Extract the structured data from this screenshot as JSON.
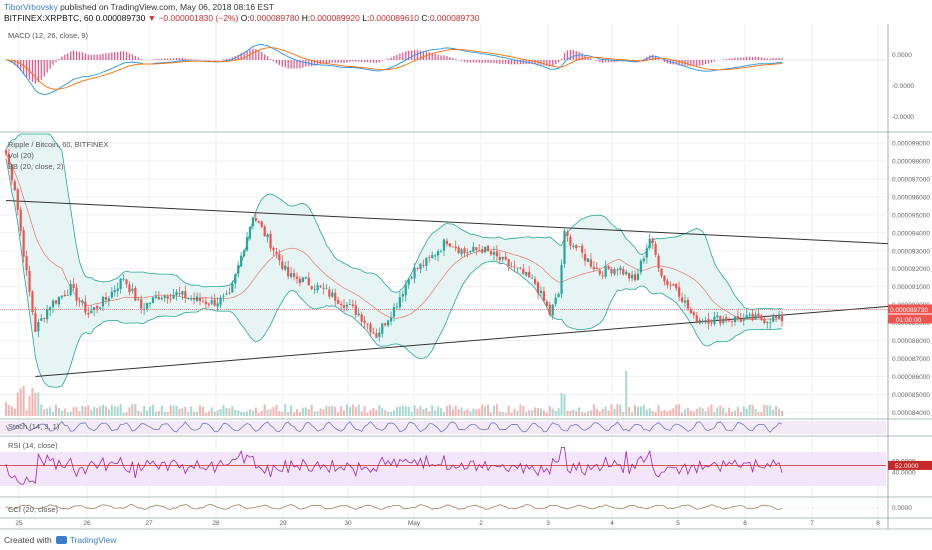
{
  "header": {
    "author": "TiborVrbovsky",
    "published_text": "published on TradingView.com, May 06, 2018 08:16 EST",
    "symbol": "BITFINEX:XRPBTC, 60",
    "last": "0.000089730",
    "change": "▼ −0.000001830 (−2%)",
    "ohlc": {
      "o_label": "O:",
      "o": "0.000089780",
      "h_label": "H:",
      "h": "0.000089920",
      "l_label": "L:",
      "l": "0.000089610",
      "c_label": "C:",
      "c": "0.000089730"
    }
  },
  "colors": {
    "up": "#26a69a",
    "down": "#ef5350",
    "macd": "#2196f3",
    "signal": "#ff6d00",
    "hist": "#e91e63",
    "rsi": "#9c27b0",
    "bb": "#26a69a",
    "basis": "#e57373",
    "trend": "#333333",
    "cci": "#a0835a"
  },
  "panes": {
    "macd_label": "MACD (12, 26, close, 9)",
    "main_label": "Ripple / Bitcoin, 60, BITFINEX",
    "vol_label": "Vol (20)",
    "bb_label": "BB (20, close, 2)",
    "stoch_label": "Stoch (14, 3, 1)",
    "rsi_label": "RSI (14, close)",
    "cci_label": "CCI (20, close)"
  },
  "chart_data": {
    "type": "candlestick",
    "x_ticks": [
      "25",
      "26",
      "27",
      "28",
      "29",
      "30",
      "May",
      "2",
      "3",
      "4",
      "5",
      "6",
      "7",
      "8"
    ],
    "price_axis_ticks": [
      "0.000099000",
      "0.000098000",
      "0.000097000",
      "0.000096000",
      "0.000095000",
      "0.000094000",
      "0.000093000",
      "0.000092000",
      "0.000091000",
      "0.000090000",
      "0.000089000",
      "0.000088000",
      "0.000087000",
      "0.000086000",
      "0.000085000",
      "0.000084000"
    ],
    "price_range": [
      8.38e-05,
      9.95e-05
    ],
    "last_price_tag": "0.000089730",
    "countdown_tag": "01:00:00",
    "macd_axis_ticks": [
      "0.0000",
      "-0.0000",
      "-0.0000"
    ],
    "rsi_axis_ticks": [
      "60.0000",
      "40.0000"
    ],
    "rsi_value_tag": "52.0000",
    "cci_axis_ticks": [
      "0.0000"
    ],
    "price_path": [
      [
        0,
        98.4
      ],
      [
        3,
        96.5
      ],
      [
        7,
        91.7
      ],
      [
        10,
        88.6
      ],
      [
        15,
        90.0
      ],
      [
        22,
        90.9
      ],
      [
        28,
        89.5
      ],
      [
        34,
        90.3
      ],
      [
        40,
        91.5
      ],
      [
        46,
        89.8
      ],
      [
        52,
        90.5
      ],
      [
        58,
        90.6
      ],
      [
        64,
        90.3
      ],
      [
        70,
        90.1
      ],
      [
        76,
        90.4
      ],
      [
        84,
        95.0
      ],
      [
        90,
        93.4
      ],
      [
        96,
        91.6
      ],
      [
        102,
        91.3
      ],
      [
        108,
        90.8
      ],
      [
        114,
        90.2
      ],
      [
        120,
        89.5
      ],
      [
        126,
        88.3
      ],
      [
        132,
        89.8
      ],
      [
        138,
        91.8
      ],
      [
        144,
        92.5
      ],
      [
        150,
        93.6
      ],
      [
        156,
        92.9
      ],
      [
        162,
        93.1
      ],
      [
        168,
        92.5
      ],
      [
        174,
        91.9
      ],
      [
        180,
        91.2
      ],
      [
        185,
        89.5
      ],
      [
        188,
        90.6
      ],
      [
        190,
        93.9
      ],
      [
        196,
        92.8
      ],
      [
        202,
        91.8
      ],
      [
        208,
        92.1
      ],
      [
        214,
        91.3
      ],
      [
        219,
        93.7
      ],
      [
        224,
        91.3
      ],
      [
        228,
        91.0
      ],
      [
        234,
        89.2
      ]
    ],
    "trendlines": [
      {
        "from": [
          0,
          95.8
        ],
        "to": [
          265,
          93.4
        ]
      },
      {
        "from": [
          10,
          86.0
        ],
        "to": [
          265,
          89.9
        ]
      }
    ]
  }
}
